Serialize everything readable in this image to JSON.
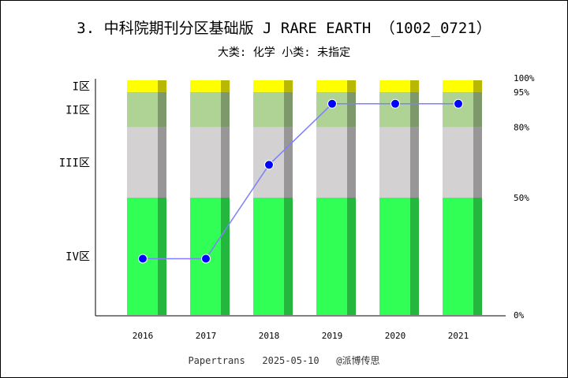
{
  "title": "3. 中科院期刊分区基础版 J RARE EARTH （1002_0721）",
  "subtitle": "大类: 化学 小类: 未指定",
  "footer": "Papertrans   2025-05-10   @派博传思",
  "colors": {
    "zone1": "#ffff00",
    "zone2": "#aed395",
    "zone3": "#d3d1d2",
    "zone4": "#31ff55",
    "line": "#7f7fff",
    "marker": "#0000ff"
  },
  "chart_data": {
    "type": "stacked-bar-with-line",
    "categories": [
      "2016",
      "2017",
      "2018",
      "2019",
      "2020",
      "2021"
    ],
    "zones": [
      {
        "label": "I区",
        "from": 95,
        "to": 100,
        "color_key": "zone1"
      },
      {
        "label": "II区",
        "from": 80,
        "to": 95,
        "color_key": "zone2"
      },
      {
        "label": "III区",
        "from": 50,
        "to": 80,
        "color_key": "zone3"
      },
      {
        "label": "IV区",
        "from": 0,
        "to": 50,
        "color_key": "zone4"
      }
    ],
    "right_axis_ticks": [
      "100%",
      "95%",
      "80%",
      "50%",
      "0%"
    ],
    "right_axis_values": [
      100,
      95,
      80,
      50,
      0
    ],
    "series": [
      {
        "values": [
          24,
          24,
          64,
          90,
          90,
          90
        ]
      }
    ],
    "ylim": [
      0,
      100
    ]
  }
}
